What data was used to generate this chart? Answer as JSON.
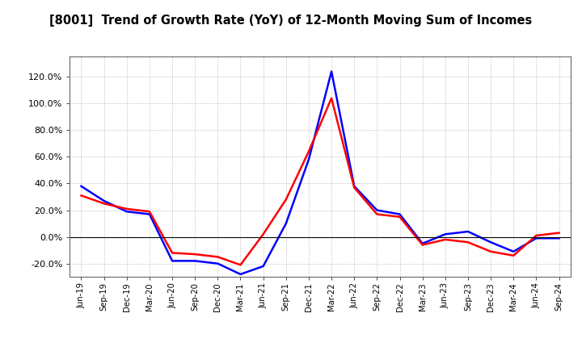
{
  "title": "[8001]  Trend of Growth Rate (YoY) of 12-Month Moving Sum of Incomes",
  "x_labels": [
    "Jun-19",
    "Sep-19",
    "Dec-19",
    "Mar-20",
    "Jun-20",
    "Sep-20",
    "Dec-20",
    "Mar-21",
    "Jun-21",
    "Sep-21",
    "Dec-21",
    "Mar-22",
    "Jun-22",
    "Sep-22",
    "Dec-22",
    "Mar-23",
    "Jun-23",
    "Sep-23",
    "Dec-23",
    "Mar-24",
    "Jun-24",
    "Sep-24"
  ],
  "ordinary_income": [
    0.38,
    0.27,
    0.19,
    0.17,
    -0.18,
    -0.18,
    -0.2,
    -0.28,
    -0.22,
    0.1,
    0.58,
    1.24,
    0.38,
    0.2,
    0.17,
    -0.05,
    0.02,
    0.04,
    -0.04,
    -0.11,
    -0.01,
    -0.01
  ],
  "net_income": [
    0.31,
    0.25,
    0.21,
    0.19,
    -0.12,
    -0.13,
    -0.15,
    -0.21,
    0.02,
    0.28,
    0.64,
    1.04,
    0.37,
    0.17,
    0.15,
    -0.06,
    -0.02,
    -0.04,
    -0.11,
    -0.14,
    0.01,
    0.03
  ],
  "ordinary_color": "#0000FF",
  "net_color": "#FF0000",
  "background_color": "#FFFFFF",
  "plot_bg_color": "#FFFFFF",
  "grid_color": "#888888",
  "ylim_min": -0.3,
  "ylim_max": 1.35,
  "yticks": [
    -0.2,
    0.0,
    0.2,
    0.4,
    0.6,
    0.8,
    1.0,
    1.2
  ]
}
